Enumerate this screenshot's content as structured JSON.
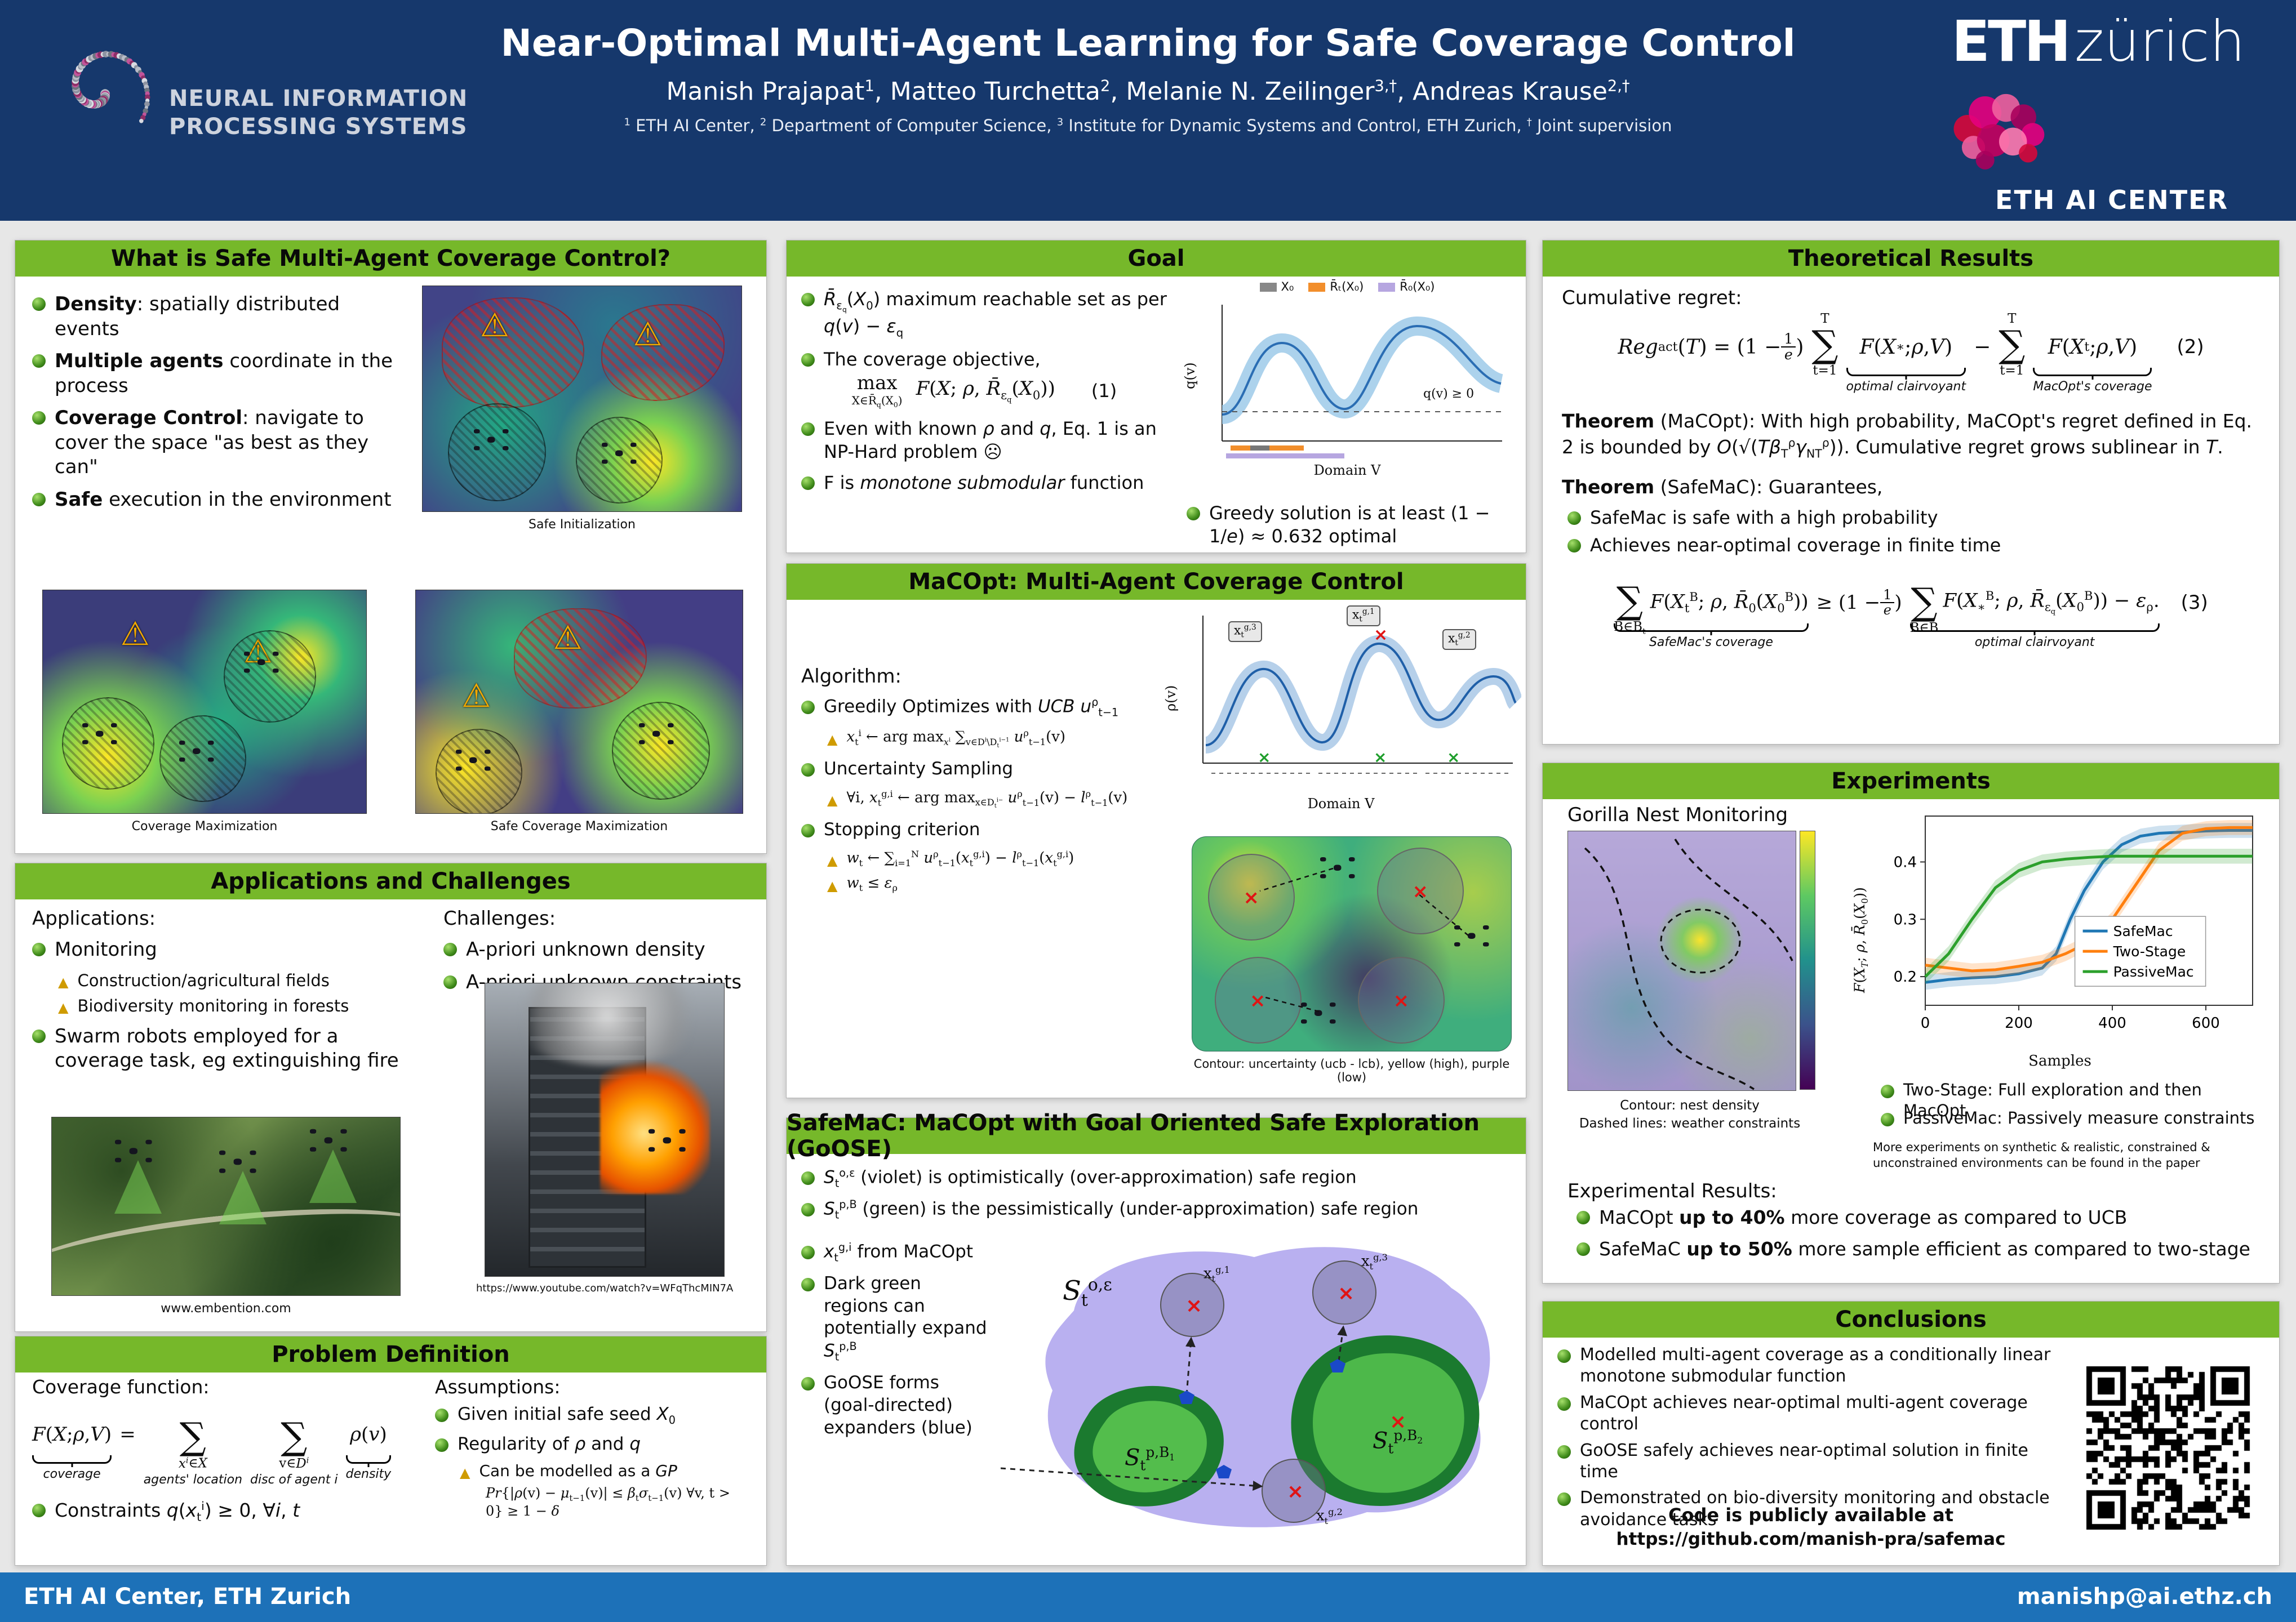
{
  "colors": {
    "header_navy": "#16386c",
    "footer_blue": "#1d71b8",
    "panel_green": "#76b82a",
    "bullet_green": "#3f8b1a",
    "triangle_gold": "#cf9b00",
    "safemac_line": "#1f77b4",
    "twostage_line": "#ff7f0e",
    "passivemac_line": "#2ca02c"
  },
  "icons": {
    "warning": "⚠",
    "cross": "×",
    "frown": "☹"
  },
  "header": {
    "neurips_line1": "NEURAL INFORMATION",
    "neurips_line2": "PROCESSING SYSTEMS",
    "title": "Near-Optimal Multi-Agent Learning for Safe Coverage Control",
    "authors_html": "Manish Prajapat<sup>1</sup>, Matteo Turchetta<sup>2</sup>, Melanie N. Zeilinger<sup>3,†</sup>, Andreas Krause<sup>2,†</sup>",
    "affiliations_html": "<sup>1</sup> ETH AI Center, <sup>2</sup> Department of Computer Science, <sup>3</sup> Institute for Dynamic Systems and Control, ETH Zurich, <sup>†</sup> Joint supervision",
    "eth_logo_bold": "ETH",
    "eth_logo_light": "zürich",
    "eth_ai_center": "ETH AI CENTER"
  },
  "footer": {
    "left": "ETH AI Center, ETH Zurich",
    "right": "manishp@ai.ethz.ch"
  },
  "what": {
    "title": "What is Safe Multi-Agent Coverage Control?",
    "b1": "<b>Density</b>: spatially distributed events",
    "b2": "<b>Multiple agents</b> coordinate in the process",
    "b3": "<b>Coverage Control</b>: navigate to cover the space \"as best as they can\"",
    "b4": "<b>Safe</b> execution in the environment",
    "cap1": "Safe Initialization",
    "cap2": "Coverage Maximization",
    "cap3": "Safe Coverage Maximization"
  },
  "apps": {
    "title": "Applications and Challenges",
    "apps_heading": "Applications:",
    "a1": "Monitoring",
    "a1a": "Construction/agricultural fields",
    "a1b": "Biodiversity monitoring in forests",
    "a2": "Swarm robots employed for a coverage task, eg extinguishing fire",
    "ch_heading": "Challenges:",
    "c1": "A-priori unknown density",
    "c2": "A-priori unknown constraints",
    "cap_forest": "www.embention.com",
    "cap_fire": "https://www.youtube.com/watch?v=WFqThcMIN7A"
  },
  "problem": {
    "title": "Problem Definition",
    "cov_label": "Coverage function:",
    "f_lhs": "<i>F</i>(<i>X</i>; <i>ρ</i>, <i>V</i>) ",
    "eq_sign": "=",
    "brace_coverage": "coverage",
    "sum1_bot": "<i>x<sup>i</sup></i>∈<i>X</i>",
    "label_agents": "agents' location",
    "sum2_bot": "v∈<i>D<sup>i</sup></i>",
    "label_disc": "disc of agent i",
    "term_rho": "<i>ρ</i>(<i>v</i>)",
    "label_density": "density",
    "constraints": "Constraints <i>q</i>(<i>x</i><sub>t</sub><sup>i</sup>) ≥ 0, ∀<i>i</i>, <i>t</i>",
    "assume_heading": "Assumptions:",
    "as1": "Given initial safe seed <i>X</i><sub>0</sub>",
    "as2": "Regularity of <i>ρ</i> and <i>q</i>",
    "as2a": "Can be modelled as a <i>GP</i>",
    "as2b": "<i>Pr</i>{|<i>ρ</i>(v) − <i>μ</i><sub>t−1</sub>(v)| ≤ <i>β</i><sub>t</sub><i>σ</i><sub>t−1</sub>(v) ∀v, t &gt; 0} ≥ 1 − <i>δ</i>"
  },
  "goal": {
    "title": "Goal",
    "g1": "<i>R̄</i><sub>ε<sub>q</sub></sub>(<i>X</i><sub>0</sub>) maximum reachable set as per <i>q</i>(<i>v</i>) − <i>ε</i><sub>q</sub>",
    "g2": "The coverage objective,",
    "eq1_max": "max",
    "eq1_sub": "X∈R̄<sub>q</sub>(X<sub>0</sub>)",
    "eq1_body": "<i>F</i>(<i>X</i>; <i>ρ</i>, <i>R̄</i><sub>ε<sub>q</sub></sub>(<i>X</i><sub>0</sub>))",
    "eq1_num": "(1)",
    "g3": "Even with known <i>ρ</i> and <i>q</i>, Eq. 1 is an NP-Hard problem ☹",
    "g4": "F is <i>monotone submodular</i> function",
    "g5": "Greedy solution is at least (1 − 1/<i>e</i>) ≈ 0.632 optimal",
    "legend1": "X₀",
    "legend2": "R̄ₜ(X₀)",
    "legend3": "R̄₀(X₀)",
    "qpos": "q(v) ≥ 0",
    "xaxis": "Domain V",
    "yaxis": "q(v)"
  },
  "macopt": {
    "title": "MaCOpt: Multi-Agent Coverage Control",
    "alg_heading": "Algorithm:",
    "m1": "Greedily Optimizes with <i>UCB</i> <i>u</i><sup>ρ</sup><sub>t−1</sub>",
    "m1a": "<i>x</i><sub>t</sub><sup>i</sup> ← arg max<sub><i>x</i><sup>i</sup></sub> ∑<sub>v∈D<sup>i</sup>\\D<sub>t</sub><sup>i−1</sup></sub> <i>u</i><sup>ρ</sup><sub>t−1</sub>(v)",
    "m2": "Uncertainty Sampling",
    "m2a": "∀i, <i>x</i><sub>t</sub><sup>g,i</sup> ← arg max<sub>x∈D<sub>t</sub><sup>i−</sup></sub> <i>u</i><sup>ρ</sup><sub>t−1</sub>(v) − <i>l</i><sup>ρ</sup><sub>t−1</sub>(v)",
    "m3": "Stopping criterion",
    "m3a": "<i>w</i><sub>t</sub> ← ∑<sub>i=1</sub><sup>N</sup> <i>u</i><sup>ρ</sup><sub>t−1</sub>(<i>x</i><sub>t</sub><sup>g,i</sup>) − <i>l</i><sup>ρ</sup><sub>t−1</sub>(<i>x</i><sub>t</sub><sup>g,i</sup>)",
    "m3b": "<i>w</i><sub>t</sub> ≤ <i>ε</i><sub>ρ</sub>",
    "lab1": "x<sub>t</sub><sup>g,1</sup>",
    "lab2": "x<sub>t</sub><sup>g,2</sup>",
    "lab3": "x<sub>t</sub><sup>g,3</sup>",
    "xaxis": "Domain V",
    "yaxis": "ρ(v)",
    "contour_caption": "Contour: uncertainty (ucb - lcb), yellow (high), purple (low)"
  },
  "safemac": {
    "title": "SafeMaC: MaCOpt with Goal Oriented Safe Exploration (GoOSE)",
    "s1": "<i>S</i><sub>t</sub><sup>o,ε</sup> (violet) is optimistically (over-approximation) safe region",
    "s2": "<i>S</i><sub>t</sub><sup>p,B</sup> (green) is the pessimistically (under-approximation) safe region",
    "s3": "<i>x</i><sub>t</sub><sup>g,i</sup> from MaCOpt",
    "s4": "Dark green regions can potentially expand <i>S</i><sub>t</sub><sup>p,B</sup>",
    "s5": "GoOSE forms (goal-directed) expanders (blue)",
    "fig_so": "<i>S</i><sub>t</sub><sup>o,ε</sup>",
    "fig_sb1": "<i>S</i><sub>t</sub><sup>p,B<sub>1</sub></sup>",
    "fig_sb2": "<i>S</i><sub>t</sub><sup>p,B<sub>2</sub></sup>",
    "fig_x1": "x<sub>t</sub><sup>g,1</sup>",
    "fig_x2": "x<sub>t</sub><sup>g,2</sup>",
    "fig_x3": "x<sub>t</sub><sup>g,3</sup>"
  },
  "theory": {
    "title": "Theoretical Results",
    "cum": "Cumulative regret:",
    "eq2_lhs": "<i>Reg</i><sub>act</sub>(<i>T</i>) = (1 − <span class='frac'><span>1</span><span><i>e</i></span></span>)",
    "eq2_sum_top": "T",
    "eq2_sum_bot": "t=1",
    "eq2_t1": "<i>F</i>(<i>X</i><sub>∗</sub>; <i>ρ</i>, <i>V</i>)",
    "eq2_brace1": "optimal clairvoyant",
    "eq2_minus": "−",
    "eq2_t2": "<i>F</i>(<i>X</i><sub>t</sub>; <i>ρ</i>, <i>V</i>)",
    "eq2_brace2": "MacOpt's coverage",
    "eq2_num": "(2)",
    "thm1": "<b>Theorem</b> (MaCOpt): With high probability, MaCOpt's regret defined in Eq. 2 is bounded by <i>O</i>(√(<i>Tβ</i><sub>T</sub><sup>ρ</sup><i>γ</i><sub>NT</sub><sup>ρ</sup>)). Cumulative regret grows sublinear in <i>T</i>.",
    "thm2": "<b>Theorem</b> (SafeMaC): Guarantees,",
    "t2a": "SafeMac is safe with a high probability",
    "t2b": "Achieves near-optimal coverage in finite time",
    "eq3_sum1_bot": "B∈B<sub>t</sub>",
    "eq3_t1": "<i>F</i>(<i>X</i><sub>t</sub><sup>B</sup>; <i>ρ</i>, <i>R̄</i><sub>0</sub>(<i>X</i><sub>0</sub><sup>B</sup>))",
    "eq3_brace1": "SafeMac's coverage",
    "eq3_rel": "≥ (1 − <span class='frac'><span>1</span><span><i>e</i></span></span>)",
    "eq3_sum2_bot": "B∈B",
    "eq3_t2": "<i>F</i>(<i>X</i><sub>∗</sub><sup>B</sup>; <i>ρ</i>, <i>R̄</i><sub>ε<sub>q</sub></sub>(<i>X</i><sub>0</sub><sup>B</sup>)) − <i>ε</i><sub>ρ</sub>.",
    "eq3_brace2": "optimal clairvoyant",
    "eq3_num": "(3)"
  },
  "experiments": {
    "title": "Experiments",
    "gorilla": "Gorilla Nest Monitoring",
    "cap1": "Contour: nest density",
    "cap2": "Dashed lines: weather constraints",
    "e1": "Two-Stage: Full exploration and then MacOpt",
    "e2": "PassiveMac: Passively measure constraints",
    "more": "More experiments on synthetic & realistic, constrained & unconstrained environments can be found in the paper",
    "res_heading": "Experimental Results:",
    "r1": "MaCOpt <b>up to 40%</b> more coverage as compared to UCB",
    "r2": "SafeMaC <b>up to 50%</b> more sample efficient as compared to two-stage",
    "chart_data": {
      "type": "line",
      "title": "",
      "xlabel": "Samples",
      "ylabel": "F(X_T; rho, R0(X_0))",
      "ylabel_html": "<i>F</i>(<i>X<sub>T</sub></i>; <i>ρ</i>, <i>R̄</i><sub>0</sub>(<i>X</i><sub>0</sub>))",
      "xlim": [
        0,
        700
      ],
      "ylim": [
        0.15,
        0.48
      ],
      "xticks": [
        0,
        200,
        400,
        600
      ],
      "yticks": [
        0.2,
        0.3,
        0.4
      ],
      "grid": false,
      "legend_position": "center-right",
      "series": [
        {
          "name": "SafeMac",
          "color": "#1f77b4",
          "x": [
            0,
            50,
            100,
            150,
            200,
            250,
            280,
            310,
            340,
            380,
            420,
            460,
            500,
            550,
            600,
            650,
            700
          ],
          "y": [
            0.19,
            0.195,
            0.198,
            0.2,
            0.205,
            0.215,
            0.24,
            0.3,
            0.35,
            0.4,
            0.43,
            0.445,
            0.45,
            0.452,
            0.454,
            0.455,
            0.455
          ]
        },
        {
          "name": "Two-Stage",
          "color": "#ff7f0e",
          "x": [
            0,
            50,
            100,
            150,
            200,
            250,
            300,
            350,
            400,
            450,
            500,
            550,
            600,
            650,
            700
          ],
          "y": [
            0.22,
            0.215,
            0.21,
            0.212,
            0.218,
            0.225,
            0.24,
            0.26,
            0.3,
            0.36,
            0.42,
            0.45,
            0.458,
            0.46,
            0.46
          ]
        },
        {
          "name": "PassiveMac",
          "color": "#2ca02c",
          "x": [
            0,
            50,
            100,
            150,
            200,
            250,
            300,
            350,
            400,
            500,
            600,
            700
          ],
          "y": [
            0.2,
            0.24,
            0.3,
            0.355,
            0.385,
            0.4,
            0.405,
            0.408,
            0.41,
            0.41,
            0.41,
            0.41
          ]
        }
      ]
    }
  },
  "conclusions": {
    "title": "Conclusions",
    "c1": "Modelled multi-agent coverage as a conditionally linear monotone submodular function",
    "c2": "MaCOpt achieves near-optimal multi-agent coverage control",
    "c3": "GoOSE safely achieves near-optimal solution in finite time",
    "c4": "Demonstrated on bio-diversity monitoring and obstacle avoidance tasks",
    "code1": "Code is publicly available at",
    "code2": "https://github.com/manish-pra/safemac"
  }
}
